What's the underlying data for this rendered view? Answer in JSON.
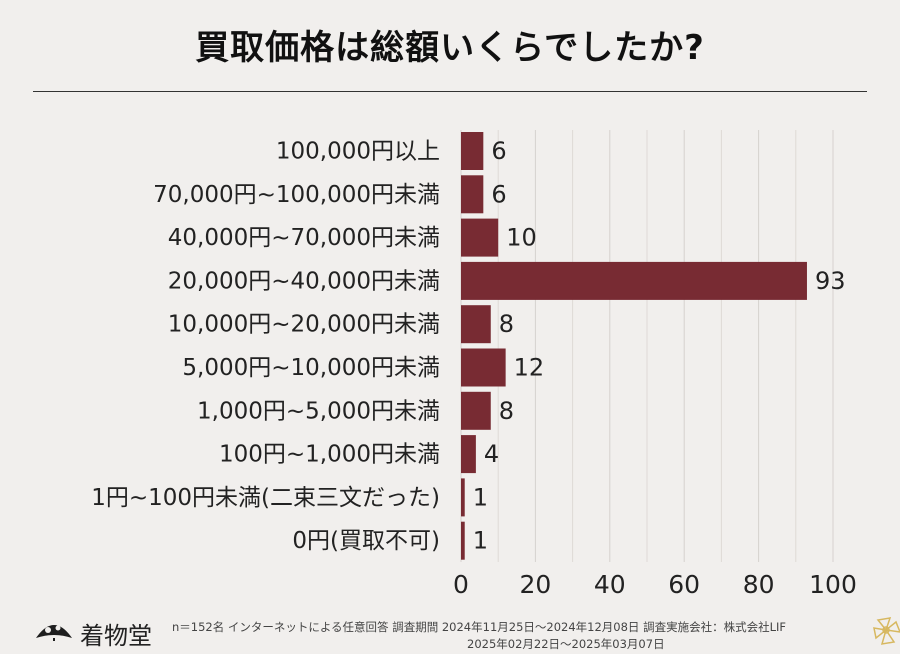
{
  "header": {
    "title": "買取価格は総額いくらでしたか?"
  },
  "chart_data": {
    "type": "bar",
    "orientation": "horizontal",
    "title": "買取価格は総額いくらでしたか?",
    "categories": [
      "100,000円以上",
      "70,000円~100,000円未満",
      "40,000円~70,000円未満",
      "20,000円~40,000円未満",
      "10,000円~20,000円未満",
      "5,000円~10,000円未満",
      "1,000円~5,000円未満",
      "100円~1,000円未満",
      "1円~100円未満(二束三文だった)",
      "0円(買取不可)"
    ],
    "values": [
      6,
      6,
      10,
      93,
      8,
      12,
      8,
      4,
      1,
      1
    ],
    "xlim": [
      0,
      100
    ],
    "xticks": [
      0,
      20,
      40,
      60,
      80,
      100
    ],
    "grid": true,
    "bar_color": "#782b33",
    "data_labels": true
  },
  "footer": {
    "brand": "着物堂",
    "note_line1": "n＝152名 インターネットによる任意回答 調査期間 2024年11月25日〜2024年12月08日 調査実施会社：株式会社LIF",
    "note_line2": "2025年02月22日〜2025年03月07日",
    "logo_icon": "fan-logo-icon",
    "corner_icon": "flower-icon"
  }
}
